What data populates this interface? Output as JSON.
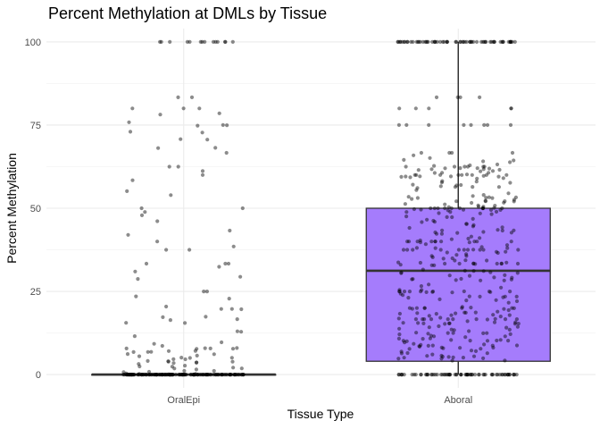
{
  "chart_data": {
    "type": "boxplot",
    "title": "Percent Methylation at DMLs by Tissue",
    "xlabel": "Tissue Type",
    "ylabel": "Percent Methylation",
    "categories": [
      "OralEpi",
      "Aboral"
    ],
    "ylim": [
      -4,
      104
    ],
    "yticks": [
      0,
      25,
      50,
      75,
      100
    ],
    "grid": true,
    "legend": "none",
    "boxes": [
      {
        "category": "OralEpi",
        "min": 0,
        "q1": 0,
        "median": 0,
        "q3": 0,
        "max": 0,
        "fill": "#ffffff",
        "jitter_count": 260,
        "jitter_seed": 11
      },
      {
        "category": "Aboral",
        "min": 0,
        "q1": 4,
        "median": 31.2,
        "q3": 50,
        "max": 100,
        "fill": "#a57cfc",
        "jitter_count": 520,
        "jitter_seed": 29
      }
    ],
    "point_color": "#000000",
    "point_opacity": 0.45
  }
}
